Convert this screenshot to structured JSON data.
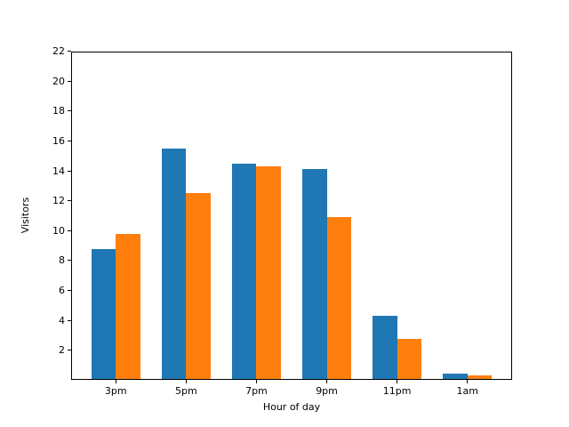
{
  "figure": {
    "background": "#ffffff"
  },
  "chart_data": {
    "type": "bar",
    "title": "",
    "categories": [
      "3pm",
      "5pm",
      "7pm",
      "9pm",
      "11pm",
      "1am"
    ],
    "series": [
      {
        "name": "blue",
        "color": "#1f77b4",
        "values": [
          8.75,
          15.5,
          14.5,
          14.1,
          4.3,
          0.4
        ]
      },
      {
        "name": "orange",
        "color": "#ff7f0e",
        "values": [
          9.8,
          12.5,
          14.3,
          10.9,
          2.75,
          0.3
        ]
      }
    ],
    "xlabel": "Hour of day",
    "ylabel": "Visitors",
    "ylim": [
      0,
      22
    ],
    "yticks": [
      2,
      4,
      6,
      8,
      10,
      12,
      14,
      16,
      18,
      20,
      22
    ],
    "bar_width_data_units": 0.35,
    "grid": false,
    "legend": "none",
    "axes_color": "#000000"
  }
}
